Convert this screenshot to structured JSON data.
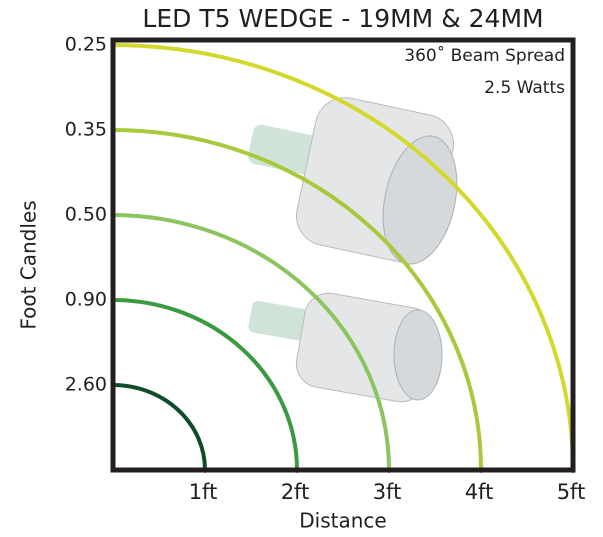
{
  "chart_data": {
    "type": "beam",
    "title": "LED T5 WEDGE - 19MM & 24MM",
    "annotations": [
      "360˚ Beam Spread",
      "2.5 Watts"
    ],
    "xlabel": "Distance",
    "ylabel": "Foot Candles",
    "x": [
      1,
      2,
      3,
      4,
      5
    ],
    "values": [
      2.6,
      0.9,
      0.5,
      0.35,
      0.25
    ],
    "value_labels": [
      "2.60",
      "0.90",
      "0.50",
      "0.35",
      "0.25"
    ],
    "colors": [
      "#0f4c2a",
      "#3b9a41",
      "#8cc560",
      "#a9c93c",
      "#d3d92c"
    ],
    "xlim": [
      0,
      5
    ],
    "xticks": [
      {
        "value": 1,
        "label": "1ft"
      },
      {
        "value": 2,
        "label": "2ft"
      },
      {
        "value": 3,
        "label": "3ft"
      },
      {
        "value": 4,
        "label": "4ft"
      },
      {
        "value": 5,
        "label": "5ft"
      }
    ]
  }
}
